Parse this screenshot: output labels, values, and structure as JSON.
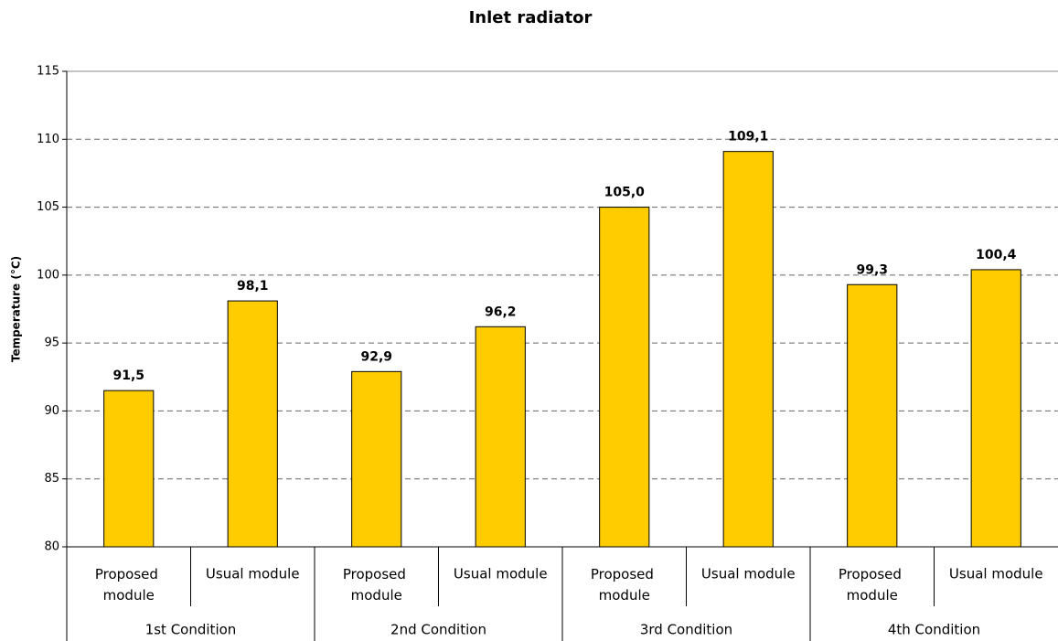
{
  "chart_data": {
    "type": "bar",
    "title": "Inlet radiator",
    "y_label": "Temperature (°C)",
    "categories": [
      "Proposed module",
      "Usual module",
      "Proposed module",
      "Usual module",
      "Proposed module",
      "Usual module",
      "Proposed module",
      "Usual module"
    ],
    "groups": [
      "1st Condition",
      "2nd Condition",
      "3rd Condition",
      "4th Condition"
    ],
    "values": [
      91.5,
      98.1,
      92.9,
      96.2,
      105.0,
      109.1,
      99.3,
      100.4
    ],
    "value_labels": [
      "91,5",
      "98,1",
      "92,9",
      "96,2",
      "105,0",
      "109,1",
      "99,3",
      "100,4"
    ],
    "color": "#ffcc00",
    "ylim": [
      80,
      115
    ],
    "yticks": [
      80,
      85,
      90,
      95,
      100,
      105,
      110,
      115
    ],
    "grid": true
  }
}
